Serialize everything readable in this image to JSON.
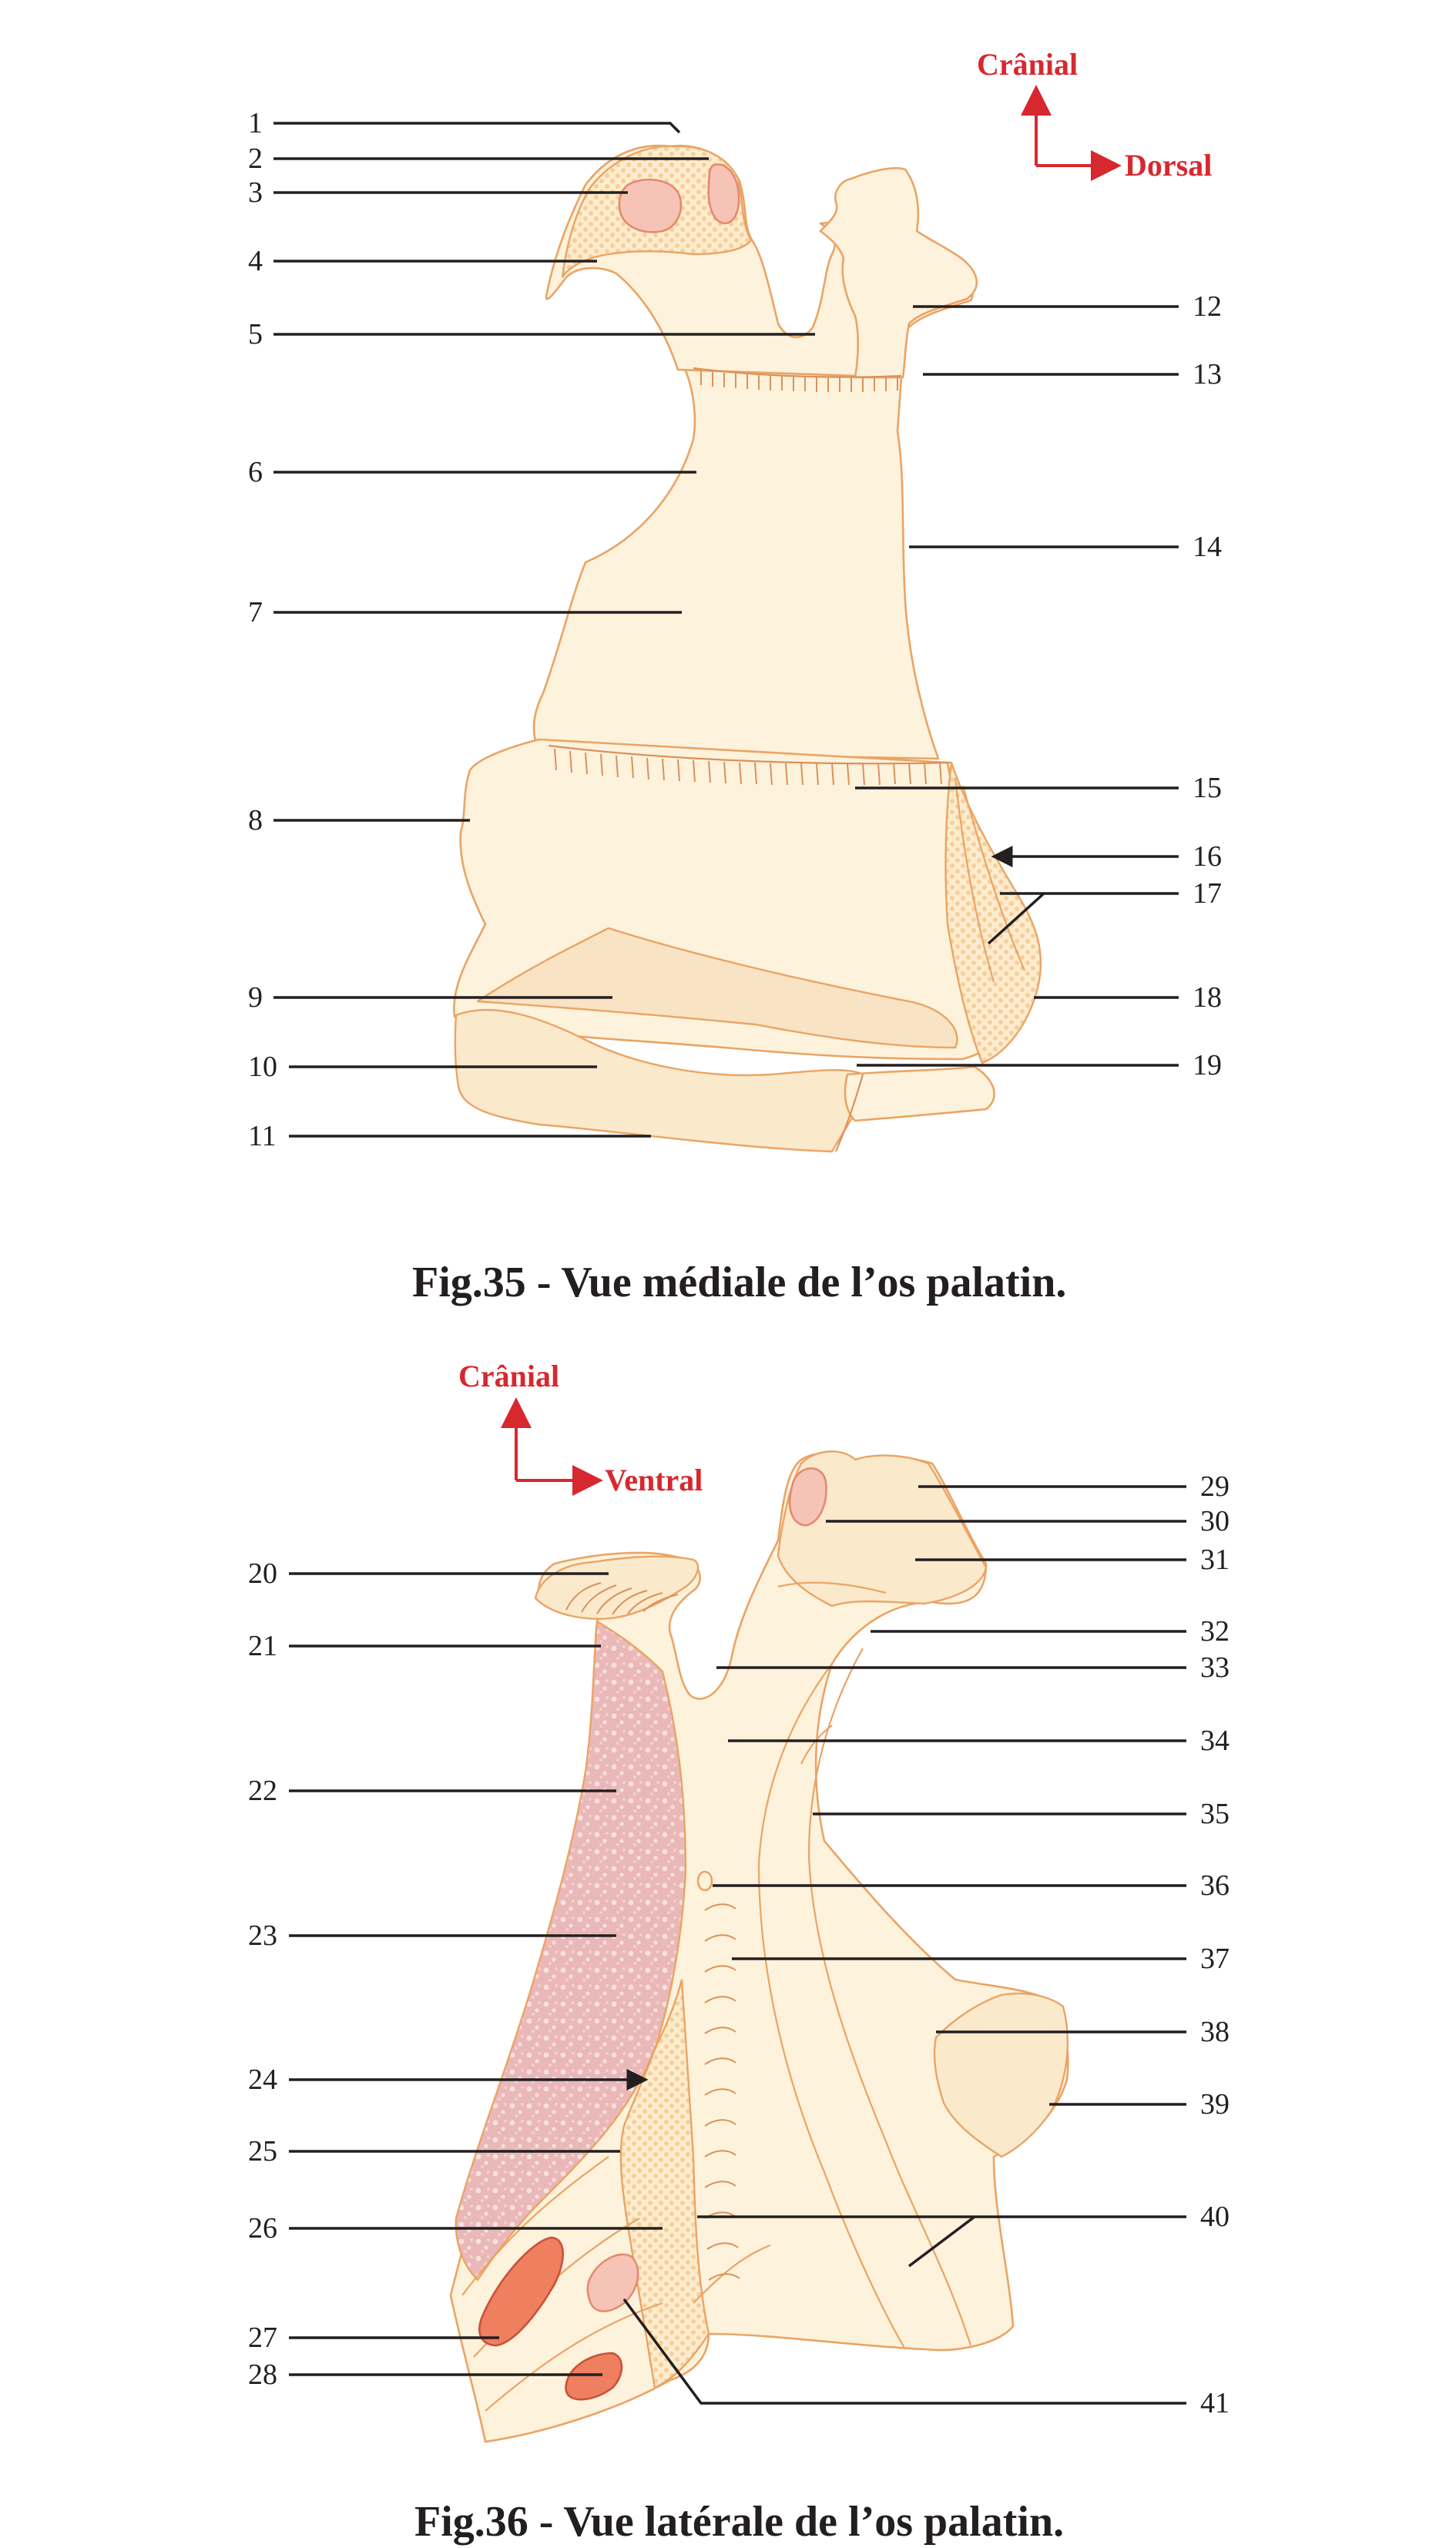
{
  "figures": [
    {
      "caption": "Fig.35 - Vue médiale de l’os palatin.",
      "orientation": {
        "vertical": "Crânial",
        "horizontal": "Dorsal"
      },
      "labels": [
        "1",
        "2",
        "3",
        "4",
        "5",
        "6",
        "7",
        "8",
        "9",
        "10",
        "11",
        "12",
        "13",
        "14",
        "15",
        "16",
        "17",
        "18",
        "19"
      ]
    },
    {
      "caption": "Fig.36 - Vue latérale de l’os palatin.",
      "orientation": {
        "vertical": "Crânial",
        "horizontal": "Ventral"
      },
      "labels": [
        "20",
        "21",
        "22",
        "23",
        "24",
        "25",
        "26",
        "27",
        "28",
        "29",
        "30",
        "31",
        "32",
        "33",
        "34",
        "35",
        "36",
        "37",
        "38",
        "39",
        "40",
        "41"
      ]
    }
  ],
  "colors": {
    "bone_fill": "#fdf2dc",
    "bone_outline": "#eaa465",
    "leader_lines": "#231f20",
    "orientation_arrows": "#d7282f",
    "sinus_fill": "#f6c4b6"
  }
}
